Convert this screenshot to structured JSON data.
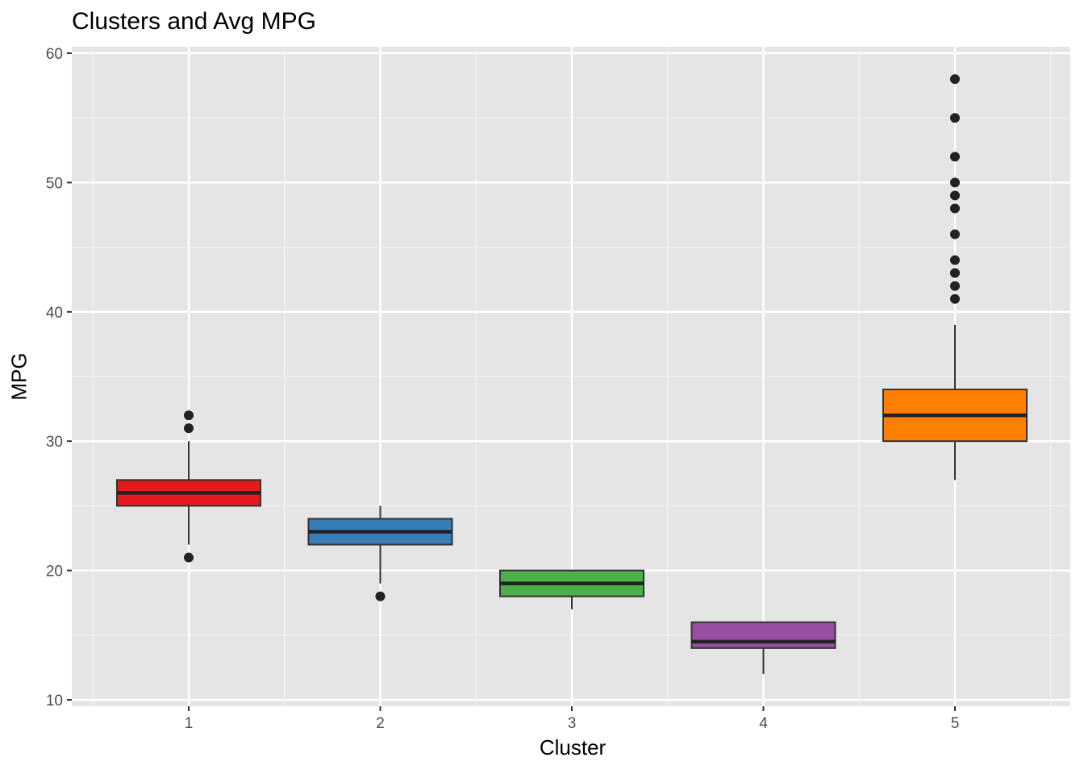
{
  "chart_data": {
    "type": "boxplot",
    "title": "Clusters and Avg MPG",
    "xlabel": "Cluster",
    "ylabel": "MPG",
    "ylim": [
      10,
      60
    ],
    "y_ticks": [
      10,
      20,
      30,
      40,
      50,
      60
    ],
    "categories": [
      "1",
      "2",
      "3",
      "4",
      "5"
    ],
    "grid": true,
    "panel_background": "#E5E5E5",
    "boxes": [
      {
        "category": "1",
        "color": "#E41A1C",
        "lower_whisker": 22,
        "q1": 25,
        "median": 26,
        "q3": 27,
        "upper_whisker": 30,
        "outliers": [
          21,
          31,
          32
        ]
      },
      {
        "category": "2",
        "color": "#377EB8",
        "lower_whisker": 19,
        "q1": 22,
        "median": 23,
        "q3": 24,
        "upper_whisker": 25,
        "outliers": [
          18
        ]
      },
      {
        "category": "3",
        "color": "#4DAF4A",
        "lower_whisker": 17,
        "q1": 18,
        "median": 19,
        "q3": 20,
        "upper_whisker": 20,
        "outliers": []
      },
      {
        "category": "4",
        "color": "#984EA3",
        "lower_whisker": 12,
        "q1": 14,
        "median": 14.5,
        "q3": 16,
        "upper_whisker": 16,
        "outliers": []
      },
      {
        "category": "5",
        "color": "#FF7F00",
        "lower_whisker": 27,
        "q1": 30,
        "median": 32,
        "q3": 34,
        "upper_whisker": 39,
        "outliers": [
          41,
          42,
          43,
          44,
          46,
          48,
          49,
          50,
          52,
          55,
          58
        ]
      }
    ]
  }
}
